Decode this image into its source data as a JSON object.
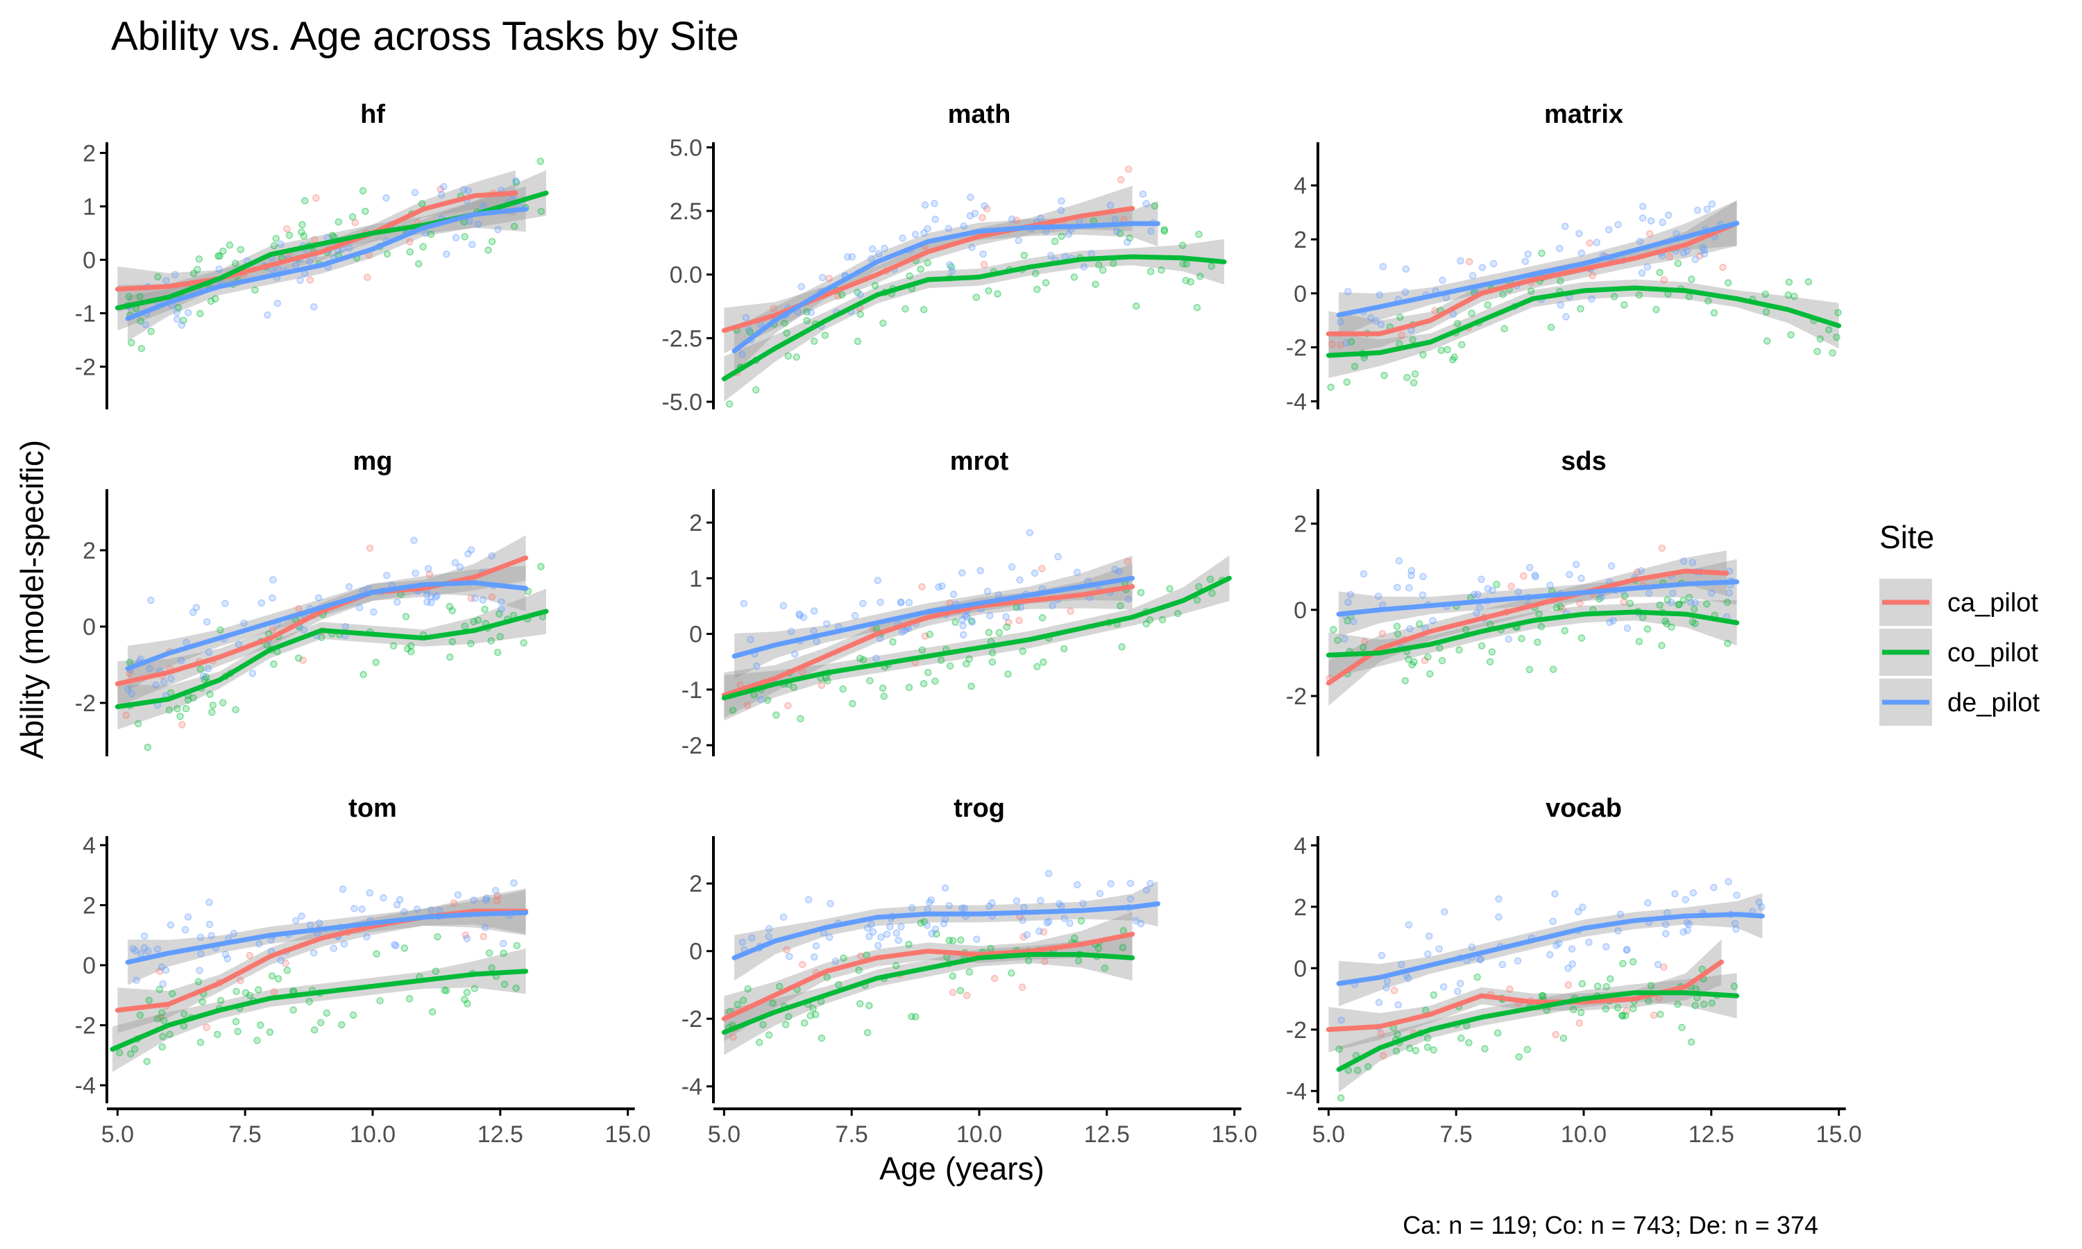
{
  "chart_data": {
    "type": "scatter",
    "title": "Ability vs. Age across Tasks by Site",
    "xlabel": "Age (years)",
    "ylabel": "Ability (model-specific)",
    "caption": "Ca: n = 119; Co: n = 743; De: n = 374",
    "legend": {
      "title": "Site",
      "placement": "right",
      "entries": [
        {
          "name": "ca_pilot",
          "color": "#F8766D"
        },
        {
          "name": "co_pilot",
          "color": "#00BA38"
        },
        {
          "name": "de_pilot",
          "color": "#619CFF"
        }
      ]
    },
    "grid": false,
    "xlim": [
      4.9,
      15.1
    ],
    "xticks": [
      5.0,
      7.5,
      10.0,
      12.5,
      15.0
    ],
    "xtick_labels": [
      "5.0",
      "7.5",
      "10.0",
      "12.5",
      "15.0"
    ],
    "panels": [
      {
        "task": "hf",
        "ylim": [
          -2.8,
          2.2
        ],
        "yticks": [
          -2,
          -1,
          0,
          1,
          2
        ],
        "ytick_labels": [
          "-2",
          "-1",
          "0",
          "1",
          "2"
        ],
        "series": [
          {
            "name": "ca_pilot",
            "x": [
              5.0,
              6.0,
              7.0,
              8.0,
              9.0,
              10.0,
              11.0,
              12.0,
              12.8
            ],
            "y": [
              -0.55,
              -0.5,
              -0.35,
              -0.1,
              0.15,
              0.5,
              0.95,
              1.2,
              1.25
            ]
          },
          {
            "name": "co_pilot",
            "x": [
              5.0,
              6.0,
              7.0,
              8.0,
              9.0,
              10.0,
              11.0,
              12.0,
              13.4
            ],
            "y": [
              -0.9,
              -0.7,
              -0.35,
              0.1,
              0.3,
              0.5,
              0.65,
              0.85,
              1.25
            ]
          },
          {
            "name": "de_pilot",
            "x": [
              5.2,
              6.0,
              7.0,
              8.0,
              9.0,
              10.0,
              11.0,
              12.0,
              13.0
            ],
            "y": [
              -1.1,
              -0.8,
              -0.5,
              -0.3,
              -0.1,
              0.2,
              0.6,
              0.85,
              0.95
            ]
          }
        ]
      },
      {
        "task": "math",
        "ylim": [
          -5.3,
          5.2
        ],
        "yticks": [
          -5.0,
          -2.5,
          0.0,
          2.5,
          5.0
        ],
        "ytick_labels": [
          "-5.0",
          "-2.5",
          "0.0",
          "2.5",
          "5.0"
        ],
        "series": [
          {
            "name": "ca_pilot",
            "x": [
              5.0,
              6.0,
              7.0,
              8.0,
              9.0,
              10.0,
              11.0,
              12.0,
              13.0
            ],
            "y": [
              -2.2,
              -1.6,
              -0.8,
              0.0,
              0.9,
              1.5,
              1.9,
              2.3,
              2.6
            ]
          },
          {
            "name": "co_pilot",
            "x": [
              5.0,
              6.0,
              7.0,
              8.0,
              9.0,
              10.0,
              11.0,
              12.0,
              13.0,
              14.0,
              14.8
            ],
            "y": [
              -4.1,
              -2.9,
              -1.8,
              -0.8,
              -0.2,
              -0.1,
              0.3,
              0.6,
              0.7,
              0.65,
              0.5
            ]
          },
          {
            "name": "de_pilot",
            "x": [
              5.2,
              6.0,
              7.0,
              8.0,
              9.0,
              10.0,
              11.0,
              12.0,
              13.0,
              13.5
            ],
            "y": [
              -3.0,
              -1.8,
              -0.6,
              0.5,
              1.3,
              1.7,
              1.85,
              1.9,
              2.0,
              2.0
            ]
          }
        ]
      },
      {
        "task": "matrix",
        "ylim": [
          -4.3,
          5.6
        ],
        "yticks": [
          -4,
          -2,
          0,
          2,
          4
        ],
        "ytick_labels": [
          "-4",
          "-2",
          "0",
          "2",
          "4"
        ],
        "series": [
          {
            "name": "ca_pilot",
            "x": [
              5.0,
              6.0,
              7.0,
              8.0,
              9.0,
              10.0,
              11.0,
              12.0,
              13.0
            ],
            "y": [
              -1.5,
              -1.5,
              -1.0,
              0.0,
              0.5,
              0.9,
              1.3,
              1.8,
              2.6
            ]
          },
          {
            "name": "co_pilot",
            "x": [
              5.0,
              6.0,
              7.0,
              8.0,
              9.0,
              10.0,
              11.0,
              12.0,
              13.0,
              14.0,
              15.0
            ],
            "y": [
              -2.3,
              -2.2,
              -1.8,
              -1.0,
              -0.2,
              0.1,
              0.2,
              0.1,
              -0.2,
              -0.6,
              -1.2
            ]
          },
          {
            "name": "de_pilot",
            "x": [
              5.2,
              6.0,
              7.0,
              8.0,
              9.0,
              10.0,
              11.0,
              12.0,
              13.0
            ],
            "y": [
              -0.8,
              -0.5,
              -0.1,
              0.3,
              0.7,
              1.1,
              1.6,
              2.1,
              2.6
            ]
          }
        ]
      },
      {
        "task": "mg",
        "ylim": [
          -3.4,
          3.6
        ],
        "yticks": [
          -2,
          0,
          2
        ],
        "ytick_labels": [
          "-2",
          "0",
          "2"
        ],
        "series": [
          {
            "name": "ca_pilot",
            "x": [
              5.0,
              6.0,
              7.0,
              8.0,
              9.0,
              10.0,
              11.0,
              12.0,
              13.0
            ],
            "y": [
              -1.5,
              -1.2,
              -0.8,
              -0.3,
              0.4,
              0.9,
              1.0,
              1.3,
              1.8
            ]
          },
          {
            "name": "co_pilot",
            "x": [
              5.0,
              6.0,
              7.0,
              8.0,
              9.0,
              10.0,
              11.0,
              12.0,
              13.4
            ],
            "y": [
              -2.1,
              -1.9,
              -1.4,
              -0.6,
              -0.1,
              -0.2,
              -0.3,
              -0.1,
              0.4
            ]
          },
          {
            "name": "de_pilot",
            "x": [
              5.2,
              6.0,
              7.0,
              8.0,
              9.0,
              10.0,
              11.0,
              12.0,
              13.0
            ],
            "y": [
              -1.1,
              -0.7,
              -0.3,
              0.1,
              0.5,
              0.9,
              1.1,
              1.15,
              1.0
            ]
          }
        ]
      },
      {
        "task": "mrot",
        "ylim": [
          -2.2,
          2.6
        ],
        "yticks": [
          -2,
          -1,
          0,
          1,
          2
        ],
        "ytick_labels": [
          "-2",
          "-1",
          "0",
          "1",
          "2"
        ],
        "series": [
          {
            "name": "ca_pilot",
            "x": [
              5.0,
              6.0,
              7.0,
              8.0,
              9.0,
              10.0,
              11.0,
              12.0,
              13.0
            ],
            "y": [
              -1.1,
              -0.8,
              -0.4,
              0.0,
              0.3,
              0.5,
              0.6,
              0.7,
              0.85
            ]
          },
          {
            "name": "co_pilot",
            "x": [
              5.0,
              6.0,
              7.0,
              8.0,
              9.0,
              10.0,
              11.0,
              12.0,
              13.0,
              14.0,
              14.9
            ],
            "y": [
              -1.15,
              -0.9,
              -0.7,
              -0.55,
              -0.4,
              -0.25,
              -0.1,
              0.1,
              0.3,
              0.6,
              1.0
            ]
          },
          {
            "name": "de_pilot",
            "x": [
              5.2,
              6.0,
              7.0,
              8.0,
              9.0,
              10.0,
              11.0,
              12.0,
              13.0
            ],
            "y": [
              -0.4,
              -0.2,
              0.0,
              0.2,
              0.4,
              0.55,
              0.7,
              0.85,
              1.0
            ]
          }
        ]
      },
      {
        "task": "sds",
        "ylim": [
          -3.4,
          2.8
        ],
        "yticks": [
          -2,
          0,
          2
        ],
        "ytick_labels": [
          "-2",
          "0",
          "2"
        ],
        "series": [
          {
            "name": "ca_pilot",
            "x": [
              5.0,
              6.0,
              7.0,
              8.0,
              9.0,
              10.0,
              11.0,
              12.0,
              12.8
            ],
            "y": [
              -1.7,
              -0.9,
              -0.5,
              -0.2,
              0.1,
              0.4,
              0.7,
              0.9,
              0.85
            ]
          },
          {
            "name": "co_pilot",
            "x": [
              5.0,
              6.0,
              7.0,
              8.0,
              9.0,
              10.0,
              11.0,
              12.0,
              13.0
            ],
            "y": [
              -1.05,
              -1.0,
              -0.8,
              -0.5,
              -0.25,
              -0.1,
              -0.05,
              -0.1,
              -0.3
            ]
          },
          {
            "name": "de_pilot",
            "x": [
              5.2,
              6.0,
              7.0,
              8.0,
              9.0,
              10.0,
              11.0,
              12.0,
              13.0
            ],
            "y": [
              -0.1,
              0.0,
              0.1,
              0.2,
              0.3,
              0.4,
              0.5,
              0.6,
              0.65
            ]
          }
        ]
      },
      {
        "task": "tom",
        "ylim": [
          -4.6,
          4.3
        ],
        "yticks": [
          -4,
          -2,
          0,
          2,
          4
        ],
        "ytick_labels": [
          "-4",
          "-2",
          "0",
          "2",
          "4"
        ],
        "series": [
          {
            "name": "ca_pilot",
            "x": [
              5.0,
              6.0,
              7.0,
              8.0,
              9.0,
              10.0,
              11.0,
              12.0,
              13.0
            ],
            "y": [
              -1.5,
              -1.3,
              -0.6,
              0.3,
              0.9,
              1.3,
              1.6,
              1.8,
              1.8
            ]
          },
          {
            "name": "co_pilot",
            "x": [
              4.9,
              6.0,
              7.0,
              8.0,
              9.0,
              10.0,
              11.0,
              12.0,
              13.0
            ],
            "y": [
              -2.8,
              -2.0,
              -1.5,
              -1.1,
              -0.9,
              -0.7,
              -0.5,
              -0.3,
              -0.2
            ]
          },
          {
            "name": "de_pilot",
            "x": [
              5.2,
              6.0,
              7.0,
              8.0,
              9.0,
              10.0,
              11.0,
              12.0,
              13.0
            ],
            "y": [
              0.1,
              0.4,
              0.7,
              1.0,
              1.2,
              1.4,
              1.6,
              1.7,
              1.75
            ]
          }
        ]
      },
      {
        "task": "trog",
        "ylim": [
          -4.5,
          3.4
        ],
        "yticks": [
          -4,
          -2,
          0,
          2
        ],
        "ytick_labels": [
          "-4",
          "-2",
          "0",
          "2"
        ],
        "series": [
          {
            "name": "ca_pilot",
            "x": [
              5.0,
              6.0,
              7.0,
              8.0,
              9.0,
              10.0,
              11.0,
              12.0,
              13.0
            ],
            "y": [
              -2.0,
              -1.3,
              -0.6,
              -0.2,
              0.0,
              -0.1,
              0.0,
              0.2,
              0.5
            ]
          },
          {
            "name": "co_pilot",
            "x": [
              5.0,
              6.0,
              7.0,
              8.0,
              9.0,
              10.0,
              11.0,
              12.0,
              13.0
            ],
            "y": [
              -2.4,
              -1.8,
              -1.3,
              -0.8,
              -0.5,
              -0.2,
              -0.1,
              -0.1,
              -0.2
            ]
          },
          {
            "name": "de_pilot",
            "x": [
              5.2,
              6.0,
              7.0,
              8.0,
              9.0,
              10.0,
              11.0,
              12.0,
              13.0,
              13.5
            ],
            "y": [
              -0.2,
              0.3,
              0.7,
              1.0,
              1.1,
              1.1,
              1.15,
              1.2,
              1.3,
              1.4
            ]
          }
        ]
      },
      {
        "task": "vocab",
        "ylim": [
          -4.4,
          4.3
        ],
        "yticks": [
          -4,
          -2,
          0,
          2,
          4
        ],
        "ytick_labels": [
          "-4",
          "-2",
          "0",
          "2",
          "4"
        ],
        "series": [
          {
            "name": "ca_pilot",
            "x": [
              5.0,
              6.0,
              7.0,
              8.0,
              9.0,
              10.0,
              11.0,
              12.0,
              12.7
            ],
            "y": [
              -2.0,
              -1.9,
              -1.5,
              -0.9,
              -1.1,
              -1.1,
              -1.0,
              -0.6,
              0.2
            ]
          },
          {
            "name": "co_pilot",
            "x": [
              5.2,
              6.0,
              7.0,
              8.0,
              9.0,
              10.0,
              11.0,
              12.0,
              13.0
            ],
            "y": [
              -3.3,
              -2.6,
              -2.0,
              -1.6,
              -1.3,
              -1.0,
              -0.8,
              -0.8,
              -0.9
            ]
          },
          {
            "name": "de_pilot",
            "x": [
              5.2,
              6.0,
              7.0,
              8.0,
              9.0,
              10.0,
              11.0,
              12.0,
              13.0,
              13.5
            ],
            "y": [
              -0.5,
              -0.3,
              0.1,
              0.5,
              0.9,
              1.3,
              1.55,
              1.7,
              1.75,
              1.7
            ]
          }
        ]
      }
    ]
  }
}
